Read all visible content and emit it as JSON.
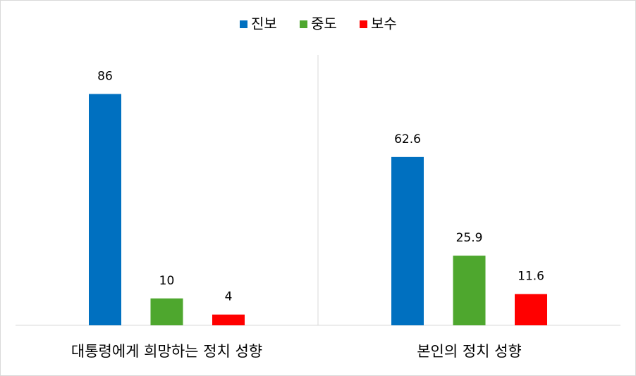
{
  "chart_data": {
    "type": "bar",
    "categories": [
      "대통령에게 희망하는 정치 성향",
      "본인의 정치 성향"
    ],
    "series": [
      {
        "name": "진보",
        "color": "#0070c0",
        "values": [
          86,
          62.6
        ]
      },
      {
        "name": "중도",
        "color": "#4ea72e",
        "values": [
          10,
          25.9
        ]
      },
      {
        "name": "보수",
        "color": "#ff0000",
        "values": [
          4,
          11.6
        ]
      }
    ],
    "ylim": [
      0,
      100
    ],
    "legend": "top"
  }
}
